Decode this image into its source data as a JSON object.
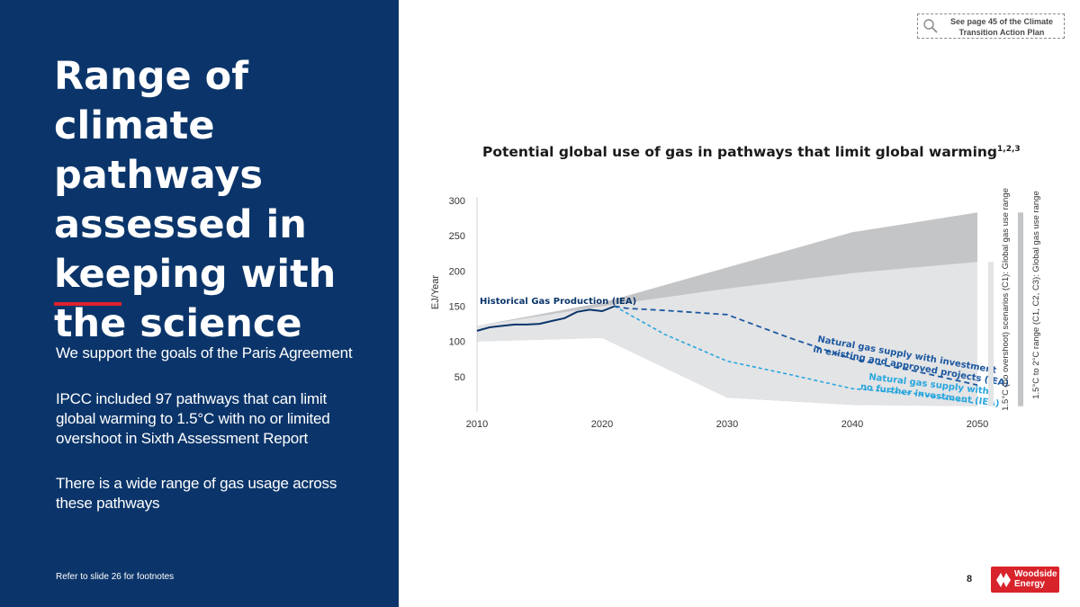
{
  "slide": {
    "title": "Range of climate pathways assessed in keeping with the science",
    "paragraphs": [
      "We support the goals of the Paris Agreement",
      "IPCC included 97 pathways that can limit global warming to 1.5°C with no or limited overshoot in Sixth Assessment Report",
      "There is a wide range of gas usage across these pathways"
    ],
    "footnote": "Refer to slide 26 for footnotes",
    "reference_note": "See page 45 of the Climate Transition Action Plan",
    "page_number": "8",
    "logo": {
      "line1": "Woodside",
      "line2": "Energy"
    }
  },
  "colors": {
    "panel": "#0b356a",
    "accent": "#e0202e",
    "historical": "#0b356a",
    "invest": "#1c58a0",
    "no_invest": "#29a6dd",
    "range_c1": "#e3e4e6",
    "range_c1_c3": "#c4c5c7"
  },
  "chart_data": {
    "type": "area",
    "title": "Potential global use of gas in pathways that limit global warming",
    "title_superscript": "1,2,3",
    "ylabel": "EJ/Year",
    "xlim": [
      2010,
      2050
    ],
    "ylim": [
      0,
      300
    ],
    "x_ticks": [
      2010,
      2020,
      2030,
      2040,
      2050
    ],
    "y_ticks": [
      50,
      100,
      150,
      200,
      250,
      300
    ],
    "ranges": [
      {
        "name": "1.5°C to 2°C range (C1, C2, C3): Global gas use range",
        "x": [
          2010,
          2020,
          2030,
          2040,
          2050
        ],
        "upper": [
          122,
          155,
          205,
          255,
          283
        ],
        "lower": [
          100,
          105,
          20,
          10,
          8
        ]
      },
      {
        "name": "1.5°C (no overshoot) scenarios (C1): Global gas use range",
        "x": [
          2010,
          2020,
          2030,
          2040,
          2050
        ],
        "upper": [
          122,
          150,
          175,
          197,
          213
        ],
        "lower": [
          100,
          105,
          20,
          10,
          8
        ]
      }
    ],
    "series": [
      {
        "name": "Historical Gas Production (IEA)",
        "style": "solid",
        "x": [
          2010,
          2011,
          2012,
          2013,
          2014,
          2015,
          2016,
          2017,
          2018,
          2019,
          2020,
          2021
        ],
        "values": [
          115,
          120,
          122,
          124,
          124,
          125,
          129,
          133,
          142,
          145,
          143,
          150
        ]
      },
      {
        "name": "Natural gas supply with investment in existing and approved projects (IEA)",
        "style": "dashed",
        "x": [
          2021,
          2022,
          2025,
          2030,
          2035,
          2040,
          2045,
          2050
        ],
        "values": [
          150,
          147,
          144,
          138,
          105,
          75,
          58,
          38
        ]
      },
      {
        "name": "Natural gas supply with no further investment (IEA)",
        "style": "dashed",
        "x": [
          2021,
          2025,
          2030,
          2035,
          2040,
          2045,
          2050
        ],
        "values": [
          150,
          110,
          72,
          53,
          33,
          26,
          12
        ]
      }
    ],
    "annotations": {
      "historical": "Historical Gas Production (IEA)",
      "invest_line1": "Natural gas supply with investment",
      "invest_line2": "in existing and approved projects (IEA)",
      "noinvest_line1": "Natural gas supply with",
      "noinvest_line2": "no further investment (IEA)"
    },
    "side_labels": [
      "1.5°C (no overshoot) scenarios (C1): Global gas use range",
      "1.5°C to 2°C range (C1, C2, C3): Global gas use range"
    ]
  }
}
